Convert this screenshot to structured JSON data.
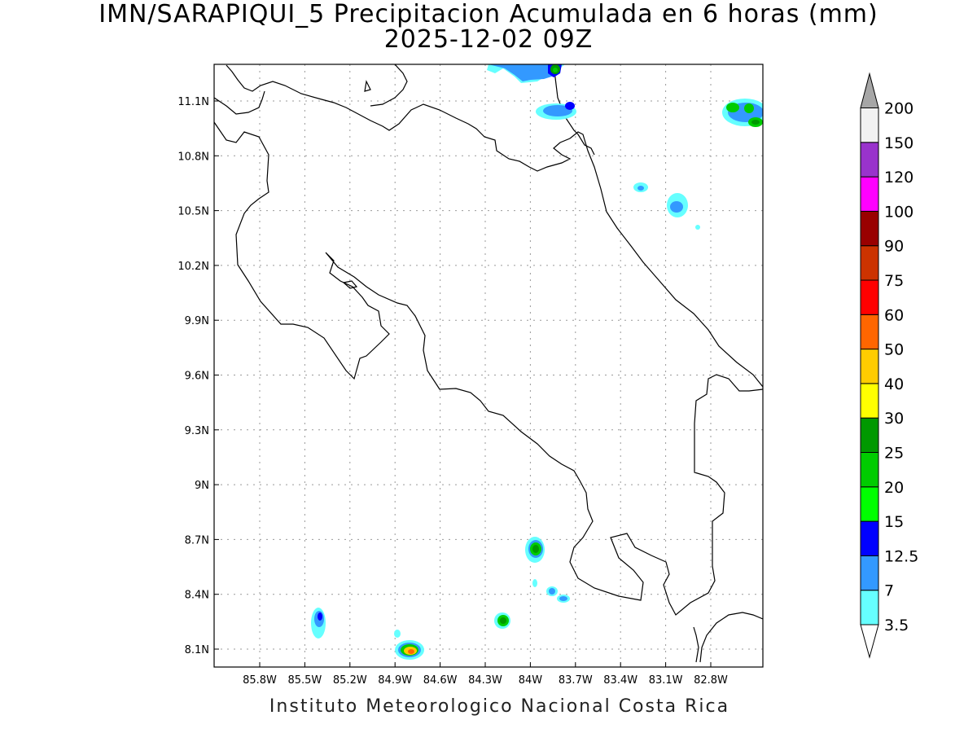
{
  "title": {
    "line1": "IMN/SARAPIQUI_5 Precipitacion Acumulada en 6 horas (mm)",
    "line2": "2025-12-02 09Z"
  },
  "credit": "Instituto Meteorologico Nacional Costa Rica",
  "axes": {
    "lon_ticks": [
      "85.8W",
      "85.5W",
      "85.2W",
      "84.9W",
      "84.6W",
      "84.3W",
      "84W",
      "83.7W",
      "83.4W",
      "83.1W",
      "82.8W"
    ],
    "lat_ticks": [
      "11.1N",
      "10.8N",
      "10.5N",
      "10.2N",
      "9.9N",
      "9.6N",
      "9.3N",
      "9N",
      "8.7N",
      "8.4N",
      "8.1N"
    ],
    "lon_range": [
      -86.0,
      -83.0
    ],
    "lat_range": [
      8.0,
      11.3
    ],
    "grid": true
  },
  "colorbar": {
    "labels": [
      "3.5",
      "7",
      "12.5",
      "15",
      "20",
      "25",
      "30",
      "40",
      "50",
      "60",
      "75",
      "90",
      "100",
      "120",
      "150",
      "200"
    ],
    "colors": [
      "#66ffff",
      "#3399ff",
      "#0000ff",
      "#00ff00",
      "#00cc00",
      "#009900",
      "#ffff00",
      "#ffcc00",
      "#ff6600",
      "#ff0000",
      "#cc3300",
      "#990000",
      "#ff00ff",
      "#9933cc",
      "#f2f2f2",
      "#a6a6a6"
    ]
  },
  "precip_cells": [
    {
      "lon": -84.78,
      "lat": 8.09,
      "max_mm": 40
    },
    {
      "lon": -85.26,
      "lat": 8.28,
      "max_mm": 12.5
    },
    {
      "lon": -84.14,
      "lat": 8.26,
      "max_mm": 25
    },
    {
      "lon": -83.96,
      "lat": 8.65,
      "max_mm": 25
    },
    {
      "lon": -83.85,
      "lat": 8.42,
      "max_mm": 7
    },
    {
      "lon": -83.79,
      "lat": 8.38,
      "max_mm": 7
    },
    {
      "lon": -83.79,
      "lat": 11.07,
      "max_mm": 12.5
    },
    {
      "lon": -83.74,
      "lat": 11.25,
      "max_mm": 25
    },
    {
      "lon": -83.28,
      "lat": 10.62,
      "max_mm": 7
    },
    {
      "lon": -83.01,
      "lat": 10.53,
      "max_mm": 7
    },
    {
      "lon": -82.7,
      "lat": 11.06,
      "max_mm": 25
    },
    {
      "lon": -82.54,
      "lat": 10.99,
      "max_mm": 25
    }
  ]
}
